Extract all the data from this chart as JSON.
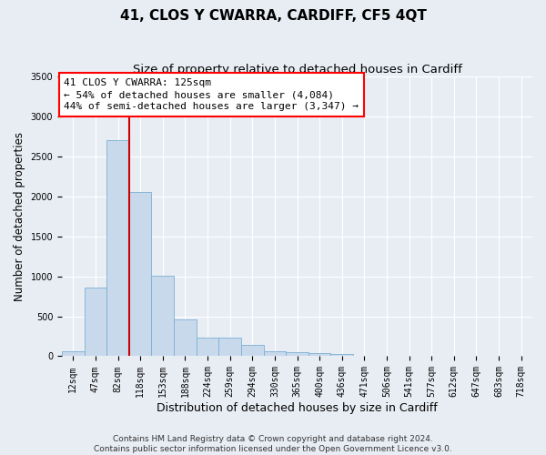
{
  "title": "41, CLOS Y CWARRA, CARDIFF, CF5 4QT",
  "subtitle": "Size of property relative to detached houses in Cardiff",
  "xlabel": "Distribution of detached houses by size in Cardiff",
  "ylabel": "Number of detached properties",
  "bar_labels": [
    "12sqm",
    "47sqm",
    "82sqm",
    "118sqm",
    "153sqm",
    "188sqm",
    "224sqm",
    "259sqm",
    "294sqm",
    "330sqm",
    "365sqm",
    "400sqm",
    "436sqm",
    "471sqm",
    "506sqm",
    "541sqm",
    "577sqm",
    "612sqm",
    "647sqm",
    "683sqm",
    "718sqm"
  ],
  "bar_values": [
    60,
    860,
    2700,
    2060,
    1010,
    460,
    230,
    230,
    140,
    65,
    55,
    35,
    25,
    0,
    0,
    0,
    0,
    0,
    0,
    0,
    0
  ],
  "bar_color": "#c9d9ec",
  "bar_edge_color": "#7bafd4",
  "vline_color": "#cc0000",
  "vline_x": 2.5,
  "annotation_text": "41 CLOS Y CWARRA: 125sqm\n← 54% of detached houses are smaller (4,084)\n44% of semi-detached houses are larger (3,347) →",
  "ylim": [
    0,
    3500
  ],
  "yticks": [
    0,
    500,
    1000,
    1500,
    2000,
    2500,
    3000,
    3500
  ],
  "footnote": "Contains HM Land Registry data © Crown copyright and database right 2024.\nContains public sector information licensed under the Open Government Licence v3.0.",
  "fig_bg": "#e8edf4",
  "ax_bg": "#e8edf4",
  "grid_color": "#ffffff",
  "title_fontsize": 11,
  "subtitle_fontsize": 9.5,
  "tick_fontsize": 7,
  "ylabel_fontsize": 8.5,
  "xlabel_fontsize": 9,
  "ann_fontsize": 8,
  "footnote_fontsize": 6.5
}
